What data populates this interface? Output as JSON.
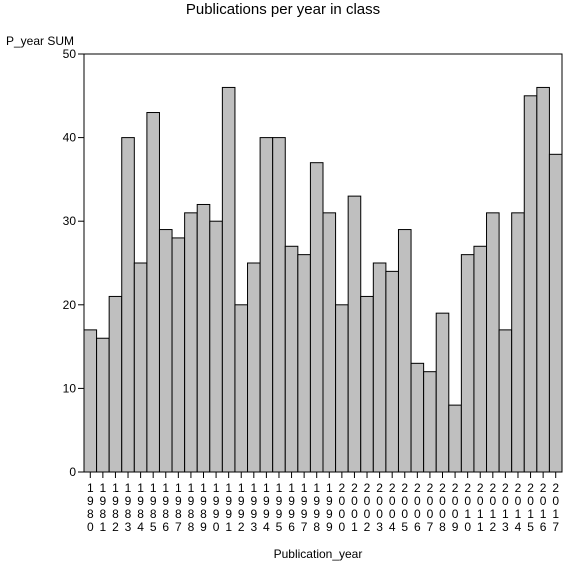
{
  "chart_data": {
    "type": "bar",
    "title": "Publications per year in class",
    "xlabel": "Publication_year",
    "ylabel": "P_year SUM",
    "ylim": [
      0,
      50
    ],
    "yticks": [
      0,
      10,
      20,
      30,
      40,
      50
    ],
    "grid": false,
    "bar_color": "#bfbfbf",
    "categories": [
      "1980",
      "1981",
      "1982",
      "1983",
      "1984",
      "1985",
      "1986",
      "1987",
      "1988",
      "1989",
      "1990",
      "1991",
      "1992",
      "1993",
      "1994",
      "1995",
      "1996",
      "1997",
      "1998",
      "1999",
      "2000",
      "2001",
      "2002",
      "2003",
      "2004",
      "2005",
      "2006",
      "2007",
      "2008",
      "2009",
      "2010",
      "2011",
      "2012",
      "2013",
      "2014",
      "2015",
      "2016",
      "2017"
    ],
    "values": [
      17,
      16,
      21,
      40,
      25,
      43,
      29,
      28,
      31,
      32,
      30,
      46,
      20,
      25,
      40,
      40,
      27,
      26,
      37,
      31,
      20,
      33,
      21,
      25,
      24,
      29,
      13,
      12,
      19,
      8,
      26,
      27,
      31,
      17,
      31,
      45,
      46,
      38
    ]
  }
}
